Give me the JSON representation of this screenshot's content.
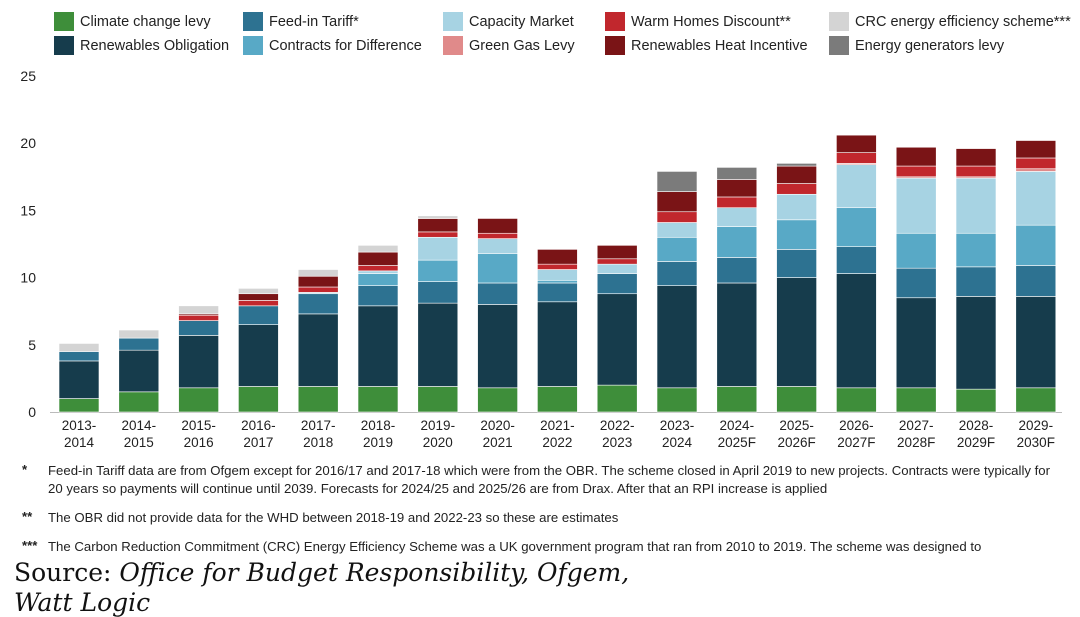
{
  "chart_data": {
    "type": "bar",
    "stacked": true,
    "title": "",
    "xlabel": "",
    "ylabel": "",
    "ylim": [
      0,
      25
    ],
    "yticks": [
      0,
      5,
      10,
      15,
      20,
      25
    ],
    "grid": false,
    "legend_position": "top",
    "categories": [
      "2013-\n2014",
      "2014-\n2015",
      "2015-\n2016",
      "2016-\n2017",
      "2017-\n2018",
      "2018-\n2019",
      "2019-\n2020",
      "2020-\n2021",
      "2021-\n2022",
      "2022-\n2023",
      "2023-\n2024",
      "2024-\n2025F",
      "2025-\n2026F",
      "2026-\n2027F",
      "2027-\n2028F",
      "2028-\n2029F",
      "2029-\n2030F"
    ],
    "series": [
      {
        "name": "Climate change levy",
        "color": "#3e8e3a",
        "values": [
          1.0,
          1.5,
          1.8,
          1.9,
          1.9,
          1.9,
          1.9,
          1.8,
          1.9,
          2.0,
          1.8,
          1.9,
          1.9,
          1.8,
          1.8,
          1.7,
          1.8
        ]
      },
      {
        "name": "Renewables Obligation",
        "color": "#163c4c",
        "values": [
          2.8,
          3.1,
          3.9,
          4.6,
          5.4,
          6.0,
          6.2,
          6.2,
          6.3,
          6.8,
          7.6,
          7.7,
          8.1,
          8.5,
          6.7,
          6.9,
          6.8
        ]
      },
      {
        "name": "Feed-in Tariff*",
        "color": "#2d7291",
        "values": [
          0.7,
          0.9,
          1.1,
          1.4,
          1.5,
          1.5,
          1.6,
          1.6,
          1.4,
          1.5,
          1.8,
          1.9,
          2.1,
          2.0,
          2.2,
          2.2,
          2.3
        ]
      },
      {
        "name": "Contracts for Difference",
        "color": "#58a9c6",
        "values": [
          0,
          0,
          0,
          0,
          0,
          0.9,
          1.6,
          2.2,
          0.2,
          0,
          1.8,
          2.3,
          2.2,
          2.9,
          2.6,
          2.5,
          3.0
        ]
      },
      {
        "name": "Capacity Market",
        "color": "#a7d3e3",
        "values": [
          0,
          0,
          0,
          0,
          0.1,
          0.2,
          1.7,
          1.1,
          0.8,
          0.7,
          1.1,
          1.4,
          1.9,
          3.2,
          4.1,
          4.1,
          4.0
        ]
      },
      {
        "name": "Green Gas Levy",
        "color": "#e08a8a",
        "values": [
          0,
          0,
          0,
          0,
          0,
          0,
          0,
          0,
          0,
          0,
          0,
          0,
          0,
          0.1,
          0.1,
          0.1,
          0.2
        ]
      },
      {
        "name": "Warm Homes Discount**",
        "color": "#c1272d",
        "values": [
          0,
          0,
          0.4,
          0.4,
          0.4,
          0.4,
          0.4,
          0.4,
          0.4,
          0.4,
          0.8,
          0.8,
          0.8,
          0.8,
          0.8,
          0.8,
          0.8
        ]
      },
      {
        "name": "Renewables Heat Incentive",
        "color": "#7a1416",
        "values": [
          0,
          0,
          0.1,
          0.5,
          0.8,
          1.0,
          1.0,
          1.1,
          1.1,
          1.0,
          1.5,
          1.3,
          1.3,
          1.3,
          1.4,
          1.3,
          1.3
        ]
      },
      {
        "name": "CRC energy efficiency scheme***",
        "color": "#d4d4d4",
        "values": [
          0.6,
          0.6,
          0.6,
          0.4,
          0.5,
          0.5,
          0.2,
          0,
          0,
          0,
          0,
          0,
          0,
          0,
          0,
          0,
          0
        ]
      },
      {
        "name": "Energy generators levy",
        "color": "#7b7b7b",
        "values": [
          0,
          0,
          0,
          0,
          0,
          0,
          0,
          0,
          0,
          0,
          1.5,
          0.9,
          0.2,
          0,
          0,
          0,
          0
        ]
      }
    ]
  },
  "legend_layout": [
    {
      "series": 0
    },
    {
      "series": 2
    },
    {
      "series": 4
    },
    {
      "series": 6
    },
    {
      "series": 8
    },
    {
      "series": 1
    },
    {
      "series": 3
    },
    {
      "series": 5
    },
    {
      "series": 7
    },
    {
      "series": 9
    }
  ],
  "notes": [
    {
      "mark": "*",
      "text": "Feed-in Tariff data are from Ofgem except for 2016/17 and 2017-18 which were from the OBR. The scheme closed in April 2019 to new projects. Contracts were typically for 20 years so payments will continue until 2039. Forecasts for 2024/25 and 2025/26 are from Drax. After that an RPI increase is applied"
    },
    {
      "mark": "**",
      "text": "The OBR did not provide data for the WHD between 2018-19 and 2022-23 so these are estimates"
    },
    {
      "mark": "***",
      "text": "The Carbon Reduction Commitment (CRC) Energy Efficiency Scheme was a UK government program that ran from 2010 to 2019. The scheme was designed to"
    }
  ],
  "source": {
    "prefix": "Source: ",
    "italic_line1": "Office for Budget Responsibility, Ofgem,",
    "italic_line2": "Watt Logic"
  }
}
